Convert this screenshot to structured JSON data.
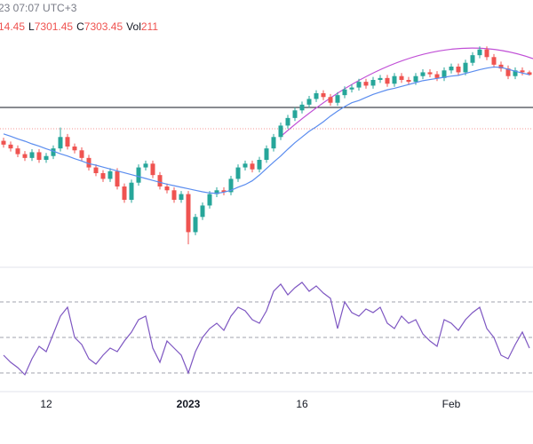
{
  "header": {
    "time": "23 07:07 UTC+3",
    "ohlc": [
      "14.45",
      "L",
      "7301.45",
      "C",
      "7303.45",
      "Vol",
      "211"
    ]
  },
  "chart_data": {
    "type": "candlestick",
    "categories": [
      null,
      null,
      null,
      null,
      null,
      null,
      "12",
      null,
      null,
      null,
      null,
      null,
      null,
      null,
      null,
      null,
      null,
      null,
      null,
      null,
      null,
      null,
      null,
      null,
      null,
      null,
      "2023",
      null,
      null,
      null,
      null,
      null,
      null,
      null,
      null,
      null,
      null,
      null,
      null,
      null,
      null,
      null,
      "16",
      null,
      null,
      null,
      null,
      null,
      null,
      null,
      null,
      null,
      null,
      null,
      null,
      null,
      null,
      null,
      null,
      null,
      null,
      null,
      null,
      "Feb",
      null,
      null,
      null,
      null,
      null,
      null,
      null,
      null,
      null,
      null,
      null
    ],
    "open": [
      7130,
      7120,
      7110,
      7095,
      7085,
      7100,
      7080,
      7090,
      7110,
      7140,
      7115,
      7105,
      7085,
      7060,
      7045,
      7030,
      7050,
      7010,
      6975,
      7020,
      7060,
      7070,
      7040,
      7010,
      7000,
      6975,
      6990,
      6890,
      6930,
      6960,
      6990,
      7000,
      6995,
      7030,
      7060,
      7070,
      7055,
      7080,
      7110,
      7140,
      7170,
      7190,
      7210,
      7225,
      7240,
      7255,
      7245,
      7230,
      7250,
      7265,
      7270,
      7285,
      7275,
      7290,
      7295,
      7280,
      7300,
      7290,
      7285,
      7300,
      7310,
      7305,
      7295,
      7315,
      7325,
      7310,
      7335,
      7355,
      7370,
      7350,
      7330,
      7320,
      7300,
      7315,
      7310
    ],
    "high": [
      7138,
      7128,
      7118,
      7103,
      7108,
      7108,
      7098,
      7118,
      7165,
      7148,
      7123,
      7113,
      7093,
      7068,
      7053,
      7058,
      7058,
      7018,
      7028,
      7068,
      7078,
      7078,
      7048,
      7018,
      7008,
      6998,
      6998,
      6938,
      6968,
      6998,
      7008,
      7008,
      7038,
      7068,
      7078,
      7078,
      7088,
      7118,
      7148,
      7178,
      7198,
      7218,
      7233,
      7248,
      7263,
      7263,
      7253,
      7258,
      7273,
      7278,
      7293,
      7293,
      7298,
      7303,
      7303,
      7308,
      7308,
      7298,
      7308,
      7318,
      7318,
      7313,
      7323,
      7333,
      7333,
      7343,
      7363,
      7378,
      7378,
      7358,
      7338,
      7328,
      7323,
      7323,
      7314.45
    ],
    "low": [
      7112,
      7102,
      7087,
      7077,
      7077,
      7072,
      7072,
      7082,
      7102,
      7107,
      7097,
      7077,
      7052,
      7037,
      7022,
      7022,
      7002,
      6967,
      6967,
      7012,
      7052,
      7032,
      7002,
      6992,
      6967,
      6967,
      6858,
      6882,
      6922,
      6952,
      6982,
      6987,
      6987,
      7022,
      7052,
      7047,
      7047,
      7072,
      7102,
      7132,
      7162,
      7182,
      7202,
      7217,
      7232,
      7237,
      7222,
      7222,
      7242,
      7257,
      7262,
      7267,
      7267,
      7282,
      7272,
      7272,
      7282,
      7277,
      7277,
      7292,
      7297,
      7287,
      7287,
      7307,
      7302,
      7302,
      7327,
      7347,
      7342,
      7322,
      7312,
      7292,
      7292,
      7302,
      7301.45
    ],
    "close": [
      7120,
      7110,
      7095,
      7085,
      7100,
      7080,
      7090,
      7110,
      7140,
      7115,
      7105,
      7085,
      7060,
      7045,
      7030,
      7050,
      7010,
      6975,
      7020,
      7060,
      7070,
      7040,
      7010,
      7000,
      6975,
      6990,
      6890,
      6930,
      6960,
      6990,
      7000,
      6995,
      7030,
      7060,
      7070,
      7055,
      7080,
      7110,
      7140,
      7170,
      7190,
      7210,
      7225,
      7240,
      7255,
      7245,
      7230,
      7250,
      7265,
      7270,
      7285,
      7275,
      7290,
      7295,
      7280,
      7300,
      7290,
      7285,
      7300,
      7310,
      7305,
      7295,
      7315,
      7325,
      7310,
      7335,
      7355,
      7370,
      7350,
      7330,
      7320,
      7300,
      7315,
      7310,
      7303.45
    ],
    "up_color": "#26a69a",
    "down_color": "#ef5350",
    "ylim": [
      6800,
      7500
    ],
    "ma": {
      "color": "#5b8def",
      "values": [
        7148,
        7142,
        7135,
        7129,
        7122,
        7116,
        7109,
        7103,
        7096,
        7090,
        7083,
        7077,
        7070,
        7066,
        7061,
        7056,
        7051,
        7046,
        7041,
        7036,
        7031,
        7026,
        7021,
        7016,
        7012,
        7008,
        7004,
        7000,
        6996,
        6993,
        6992,
        6995,
        7000,
        7008,
        7015,
        7025,
        7040,
        7057,
        7074,
        7090,
        7108,
        7125,
        7140,
        7155,
        7167,
        7180,
        7195,
        7208,
        7220,
        7230,
        7236,
        7244,
        7252,
        7258,
        7264,
        7268,
        7273,
        7278,
        7283,
        7288,
        7291,
        7294,
        7297,
        7300,
        7302,
        7307,
        7312,
        7317,
        7321,
        7324,
        7323,
        7318,
        7313,
        7308,
        7304
      ]
    },
    "rsi": {
      "color": "#7e57c2",
      "ylim": [
        20,
        90
      ],
      "yticks": [
        70,
        50,
        30
      ],
      "values": [
        40,
        36,
        33,
        29,
        38,
        45,
        42,
        52,
        62,
        67,
        50,
        46,
        38,
        35,
        40,
        44,
        42,
        48,
        53,
        60,
        62,
        44,
        36,
        48,
        44,
        40,
        30,
        42,
        50,
        55,
        58,
        54,
        62,
        67,
        65,
        60,
        58,
        65,
        76,
        80,
        74,
        78,
        81,
        76,
        79,
        75,
        72,
        55,
        70,
        64,
        62,
        66,
        64,
        67,
        58,
        55,
        62,
        58,
        60,
        52,
        48,
        45,
        60,
        58,
        54,
        60,
        64,
        67,
        55,
        50,
        40,
        38,
        46,
        53,
        44
      ]
    }
  }
}
